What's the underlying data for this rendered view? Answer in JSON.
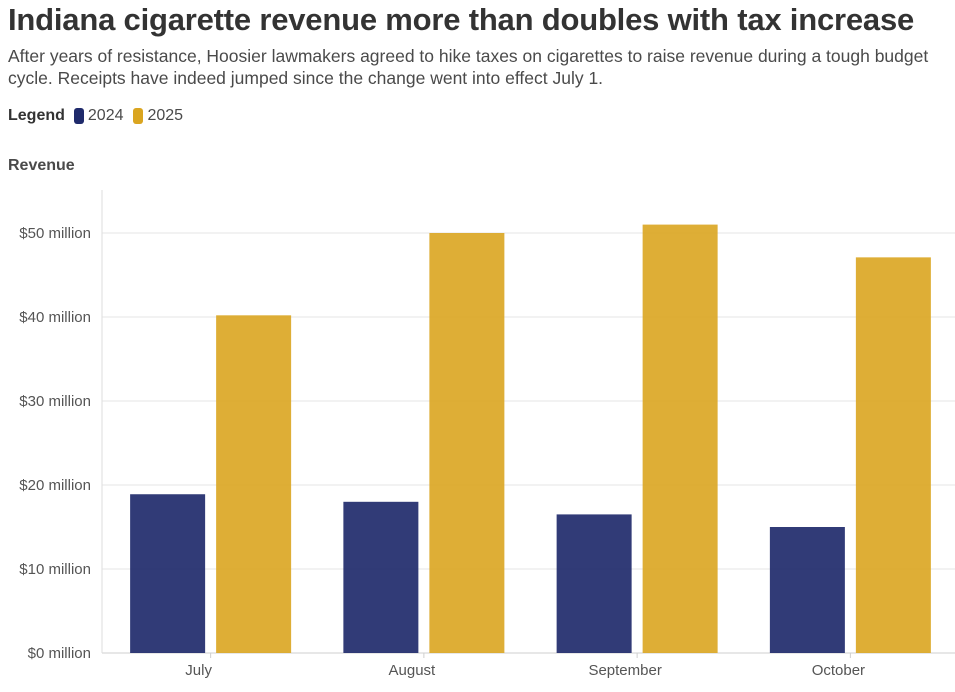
{
  "header": {
    "title": "Indiana cigarette revenue more than doubles with tax increase",
    "subtitle": "After years of resistance, Hoosier lawmakers agreed to hike taxes on cigarettes to raise revenue during a tough budget cycle. Receipts have indeed jumped since the change went into effect July 1."
  },
  "legend": {
    "title": "Legend",
    "items": [
      {
        "label": "2024",
        "color": "#1f2a6b"
      },
      {
        "label": "2025",
        "color": "#daa520"
      }
    ]
  },
  "chart_data": {
    "type": "bar",
    "ylabel": "Revenue",
    "xlabel": "",
    "categories": [
      "July",
      "August",
      "September",
      "October"
    ],
    "series": [
      {
        "name": "2024",
        "color": "#1f2a6b",
        "values": [
          18.9,
          18.0,
          16.5,
          15.0
        ]
      },
      {
        "name": "2025",
        "color": "#daa520",
        "values": [
          40.2,
          50.0,
          51.0,
          47.1
        ]
      }
    ],
    "ylim": [
      0,
      50
    ],
    "yticks": [
      0,
      10,
      20,
      30,
      40,
      50
    ],
    "ytick_labels": [
      "$0 million",
      "$10 million",
      "$20 million",
      "$30 million",
      "$40 million",
      "$50 million"
    ],
    "grid": true,
    "legend_position": "top-left"
  }
}
